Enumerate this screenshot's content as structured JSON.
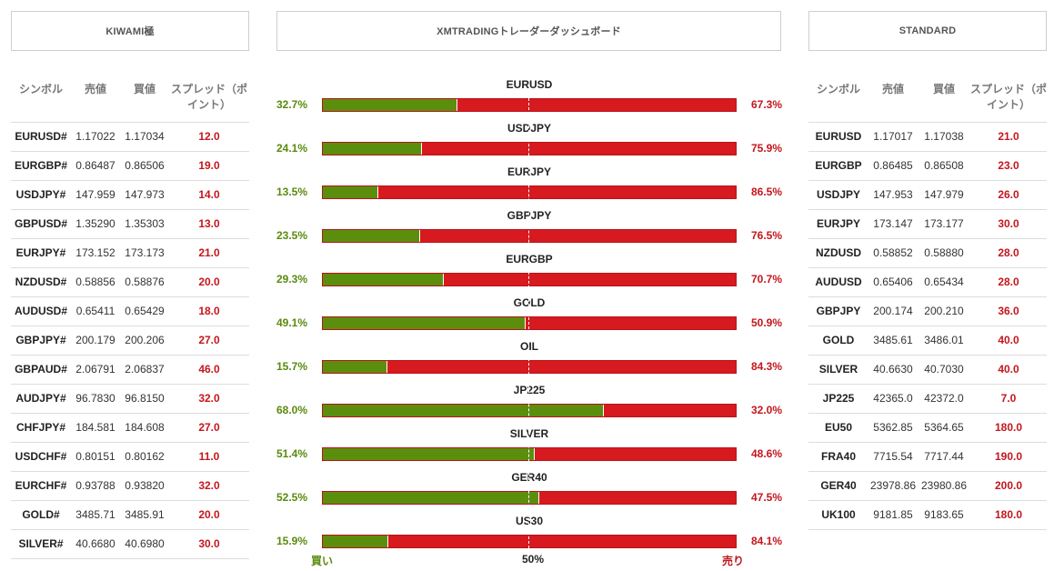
{
  "headers": {
    "left": "KIWAMI極",
    "center": "XMTRADINGトレーダーダッシュボード",
    "right": "STANDARD"
  },
  "left_table": {
    "columns": [
      "シンボル",
      "売値",
      "買値",
      "スプレッド（ポイント）"
    ],
    "rows": [
      [
        "EURUSD#",
        "1.17022",
        "1.17034",
        "12.0"
      ],
      [
        "EURGBP#",
        "0.86487",
        "0.86506",
        "19.0"
      ],
      [
        "USDJPY#",
        "147.959",
        "147.973",
        "14.0"
      ],
      [
        "GBPUSD#",
        "1.35290",
        "1.35303",
        "13.0"
      ],
      [
        "EURJPY#",
        "173.152",
        "173.173",
        "21.0"
      ],
      [
        "NZDUSD#",
        "0.58856",
        "0.58876",
        "20.0"
      ],
      [
        "AUDUSD#",
        "0.65411",
        "0.65429",
        "18.0"
      ],
      [
        "GBPJPY#",
        "200.179",
        "200.206",
        "27.0"
      ],
      [
        "GBPAUD#",
        "2.06791",
        "2.06837",
        "46.0"
      ],
      [
        "AUDJPY#",
        "96.7830",
        "96.8150",
        "32.0"
      ],
      [
        "CHFJPY#",
        "184.581",
        "184.608",
        "27.0"
      ],
      [
        "USDCHF#",
        "0.80151",
        "0.80162",
        "11.0"
      ],
      [
        "EURCHF#",
        "0.93788",
        "0.93820",
        "32.0"
      ],
      [
        "GOLD#",
        "3485.71",
        "3485.91",
        "20.0"
      ],
      [
        "SILVER#",
        "40.6680",
        "40.6980",
        "30.0"
      ]
    ]
  },
  "right_table": {
    "columns": [
      "シンボル",
      "売値",
      "買値",
      "スプレッド（ポイント）"
    ],
    "rows": [
      [
        "EURUSD",
        "1.17017",
        "1.17038",
        "21.0"
      ],
      [
        "EURGBP",
        "0.86485",
        "0.86508",
        "23.0"
      ],
      [
        "USDJPY",
        "147.953",
        "147.979",
        "26.0"
      ],
      [
        "EURJPY",
        "173.147",
        "173.177",
        "30.0"
      ],
      [
        "NZDUSD",
        "0.58852",
        "0.58880",
        "28.0"
      ],
      [
        "AUDUSD",
        "0.65406",
        "0.65434",
        "28.0"
      ],
      [
        "GBPJPY",
        "200.174",
        "200.210",
        "36.0"
      ],
      [
        "GOLD",
        "3485.61",
        "3486.01",
        "40.0"
      ],
      [
        "SILVER",
        "40.6630",
        "40.7030",
        "40.0"
      ],
      [
        "JP225",
        "42365.0",
        "42372.0",
        "7.0"
      ],
      [
        "EU50",
        "5362.85",
        "5364.65",
        "180.0"
      ],
      [
        "FRA40",
        "7715.54",
        "7717.44",
        "190.0"
      ],
      [
        "GER40",
        "23978.86",
        "23980.86",
        "200.0"
      ],
      [
        "UK100",
        "9181.85",
        "9183.65",
        "180.0"
      ]
    ]
  },
  "sentiment": {
    "rows": [
      {
        "symbol": "EURUSD",
        "buy": "32.7%",
        "sell": "67.3%",
        "buy_value": 32.7
      },
      {
        "symbol": "USDJPY",
        "buy": "24.1%",
        "sell": "75.9%",
        "buy_value": 24.1
      },
      {
        "symbol": "EURJPY",
        "buy": "13.5%",
        "sell": "86.5%",
        "buy_value": 13.5
      },
      {
        "symbol": "GBPJPY",
        "buy": "23.5%",
        "sell": "76.5%",
        "buy_value": 23.5
      },
      {
        "symbol": "EURGBP",
        "buy": "29.3%",
        "sell": "70.7%",
        "buy_value": 29.3
      },
      {
        "symbol": "GOLD",
        "buy": "49.1%",
        "sell": "50.9%",
        "buy_value": 49.1
      },
      {
        "symbol": "OIL",
        "buy": "15.7%",
        "sell": "84.3%",
        "buy_value": 15.7
      },
      {
        "symbol": "JP225",
        "buy": "68.0%",
        "sell": "32.0%",
        "buy_value": 68.0
      },
      {
        "symbol": "SILVER",
        "buy": "51.4%",
        "sell": "48.6%",
        "buy_value": 51.4
      },
      {
        "symbol": "GER40",
        "buy": "52.5%",
        "sell": "47.5%",
        "buy_value": 52.5
      },
      {
        "symbol": "US30",
        "buy": "15.9%",
        "sell": "84.1%",
        "buy_value": 15.9
      }
    ],
    "axis_buy": "買い",
    "axis_mid": "50%",
    "axis_sell": "売り"
  },
  "colors": {
    "buy": "#5c8e0e",
    "sell": "#d71920",
    "spread": "#c4161c"
  }
}
